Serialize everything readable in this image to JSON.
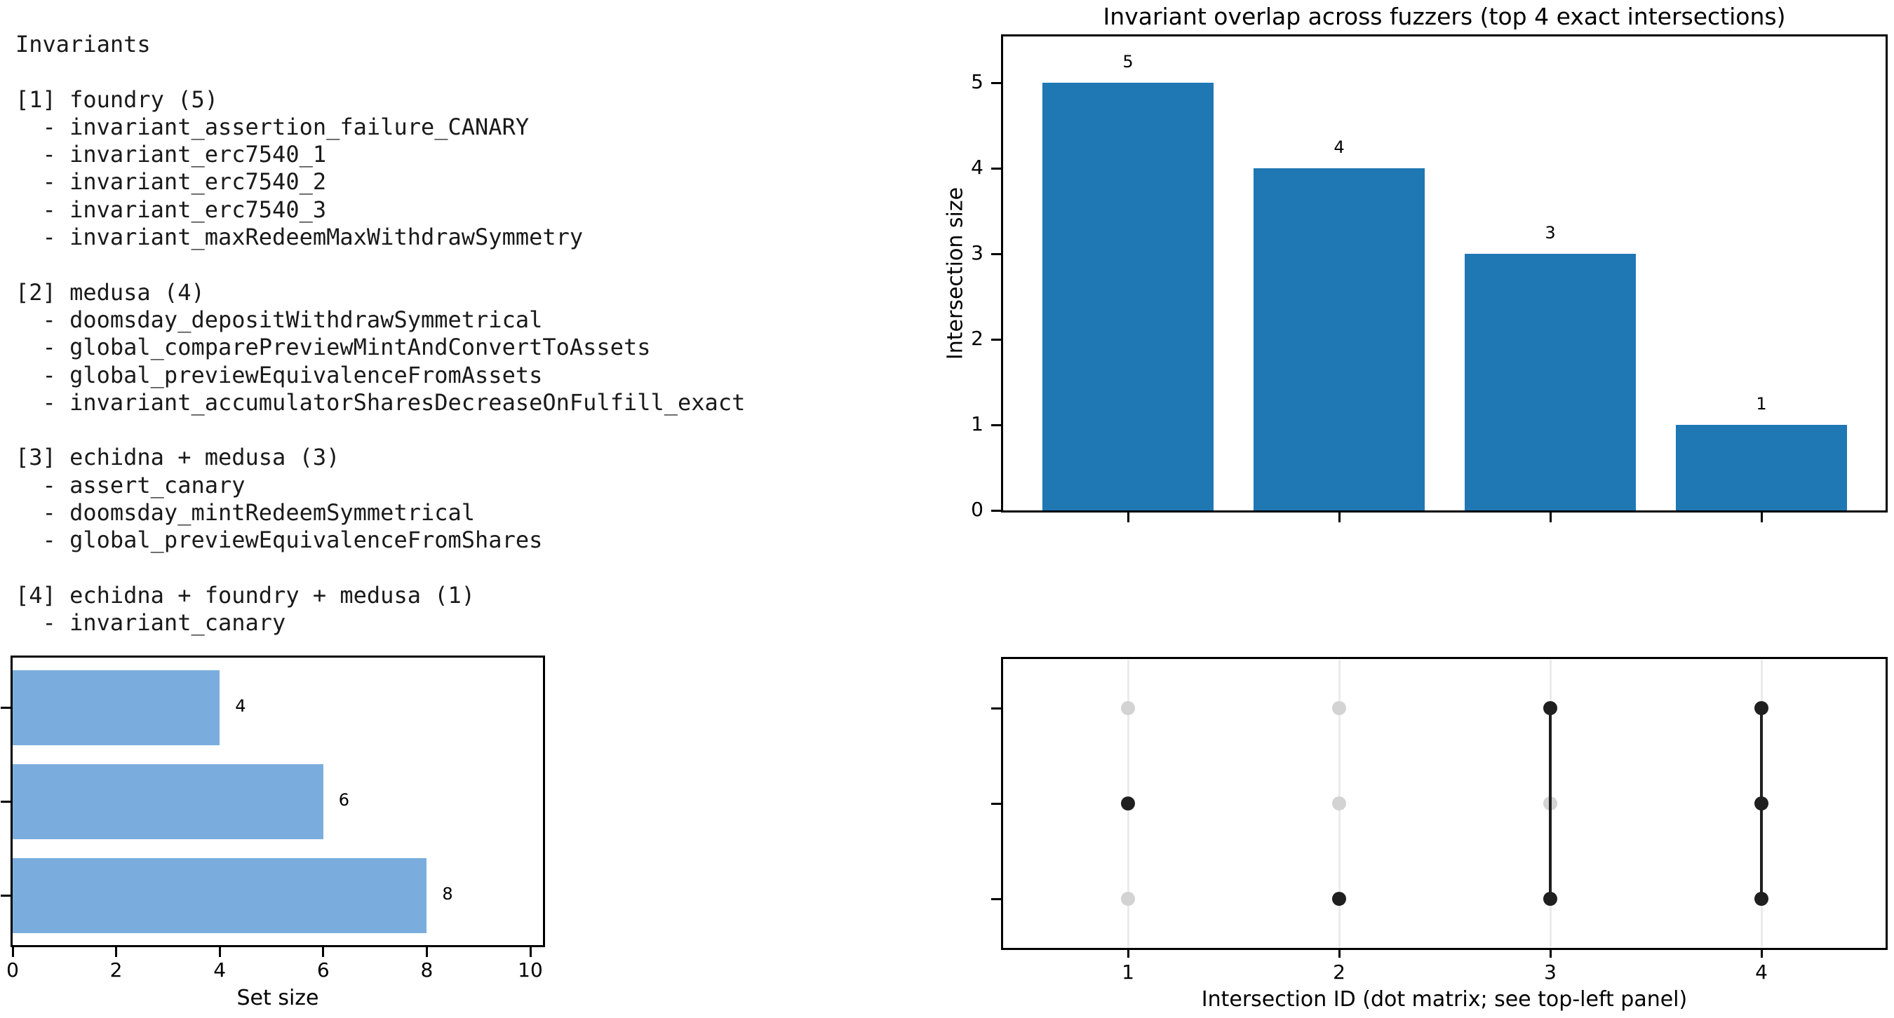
{
  "invariants_panel": {
    "title": "Invariants",
    "groups": [
      {
        "id": "[1]",
        "label": "foundry",
        "count": 5,
        "items": [
          "invariant_assertion_failure_CANARY",
          "invariant_erc7540_1",
          "invariant_erc7540_2",
          "invariant_erc7540_3",
          "invariant_maxRedeemMaxWithdrawSymmetry"
        ]
      },
      {
        "id": "[2]",
        "label": "medusa",
        "count": 4,
        "items": [
          "doomsday_depositWithdrawSymmetrical",
          "global_comparePreviewMintAndConvertToAssets",
          "global_previewEquivalenceFromAssets",
          "invariant_accumulatorSharesDecreaseOnFulfill_exact"
        ]
      },
      {
        "id": "[3]",
        "label": "echidna + medusa",
        "count": 3,
        "items": [
          "assert_canary",
          "doomsday_mintRedeemSymmetrical",
          "global_previewEquivalenceFromShares"
        ]
      },
      {
        "id": "[4]",
        "label": "echidna + foundry + medusa",
        "count": 1,
        "items": [
          "invariant_canary"
        ]
      }
    ]
  },
  "chart_data": [
    {
      "type": "bar",
      "title": "Invariant overlap across fuzzers (top 4 exact intersections)",
      "ylabel": "Intersection size",
      "categories": [
        "1",
        "2",
        "3",
        "4"
      ],
      "values": [
        5,
        4,
        3,
        1
      ],
      "value_labels": [
        "5",
        "4",
        "3",
        "1"
      ],
      "yticks": [
        0,
        1,
        2,
        3,
        4,
        5
      ],
      "ylim": [
        0,
        5.54
      ],
      "xticklabels_shown": false,
      "grid": false,
      "legend": "none",
      "bar_color": "#1f77b4"
    },
    {
      "type": "bar-horizontal",
      "xlabel": "Set size",
      "rows_top_to_bottom": [
        "echidna",
        "foundry",
        "medusa"
      ],
      "values": [
        4,
        6,
        8
      ],
      "value_labels": [
        "4",
        "6",
        "8"
      ],
      "xticks": [
        0,
        2,
        4,
        6,
        8,
        10
      ],
      "xlim": [
        0,
        10.24
      ],
      "yticklabels_shown": false,
      "grid": false,
      "bar_color": "#7aaddd"
    },
    {
      "type": "dot-matrix",
      "xlabel": "Intersection ID (dot matrix; see top-left panel)",
      "columns": [
        "1",
        "2",
        "3",
        "4"
      ],
      "rows_top_to_bottom": [
        "echidna",
        "foundry",
        "medusa"
      ],
      "membership_by_column": [
        [
          false,
          true,
          false
        ],
        [
          false,
          false,
          true
        ],
        [
          true,
          false,
          true
        ],
        [
          true,
          true,
          true
        ]
      ],
      "dot_on_color": "#1f1f1f",
      "dot_off_color": "#d3d3d3",
      "connector_color": "#1f1f1f",
      "gridline_color": "#ebebeb"
    }
  ],
  "colors": {
    "spine": "#000000",
    "text": "#000000",
    "background": "#ffffff"
  }
}
